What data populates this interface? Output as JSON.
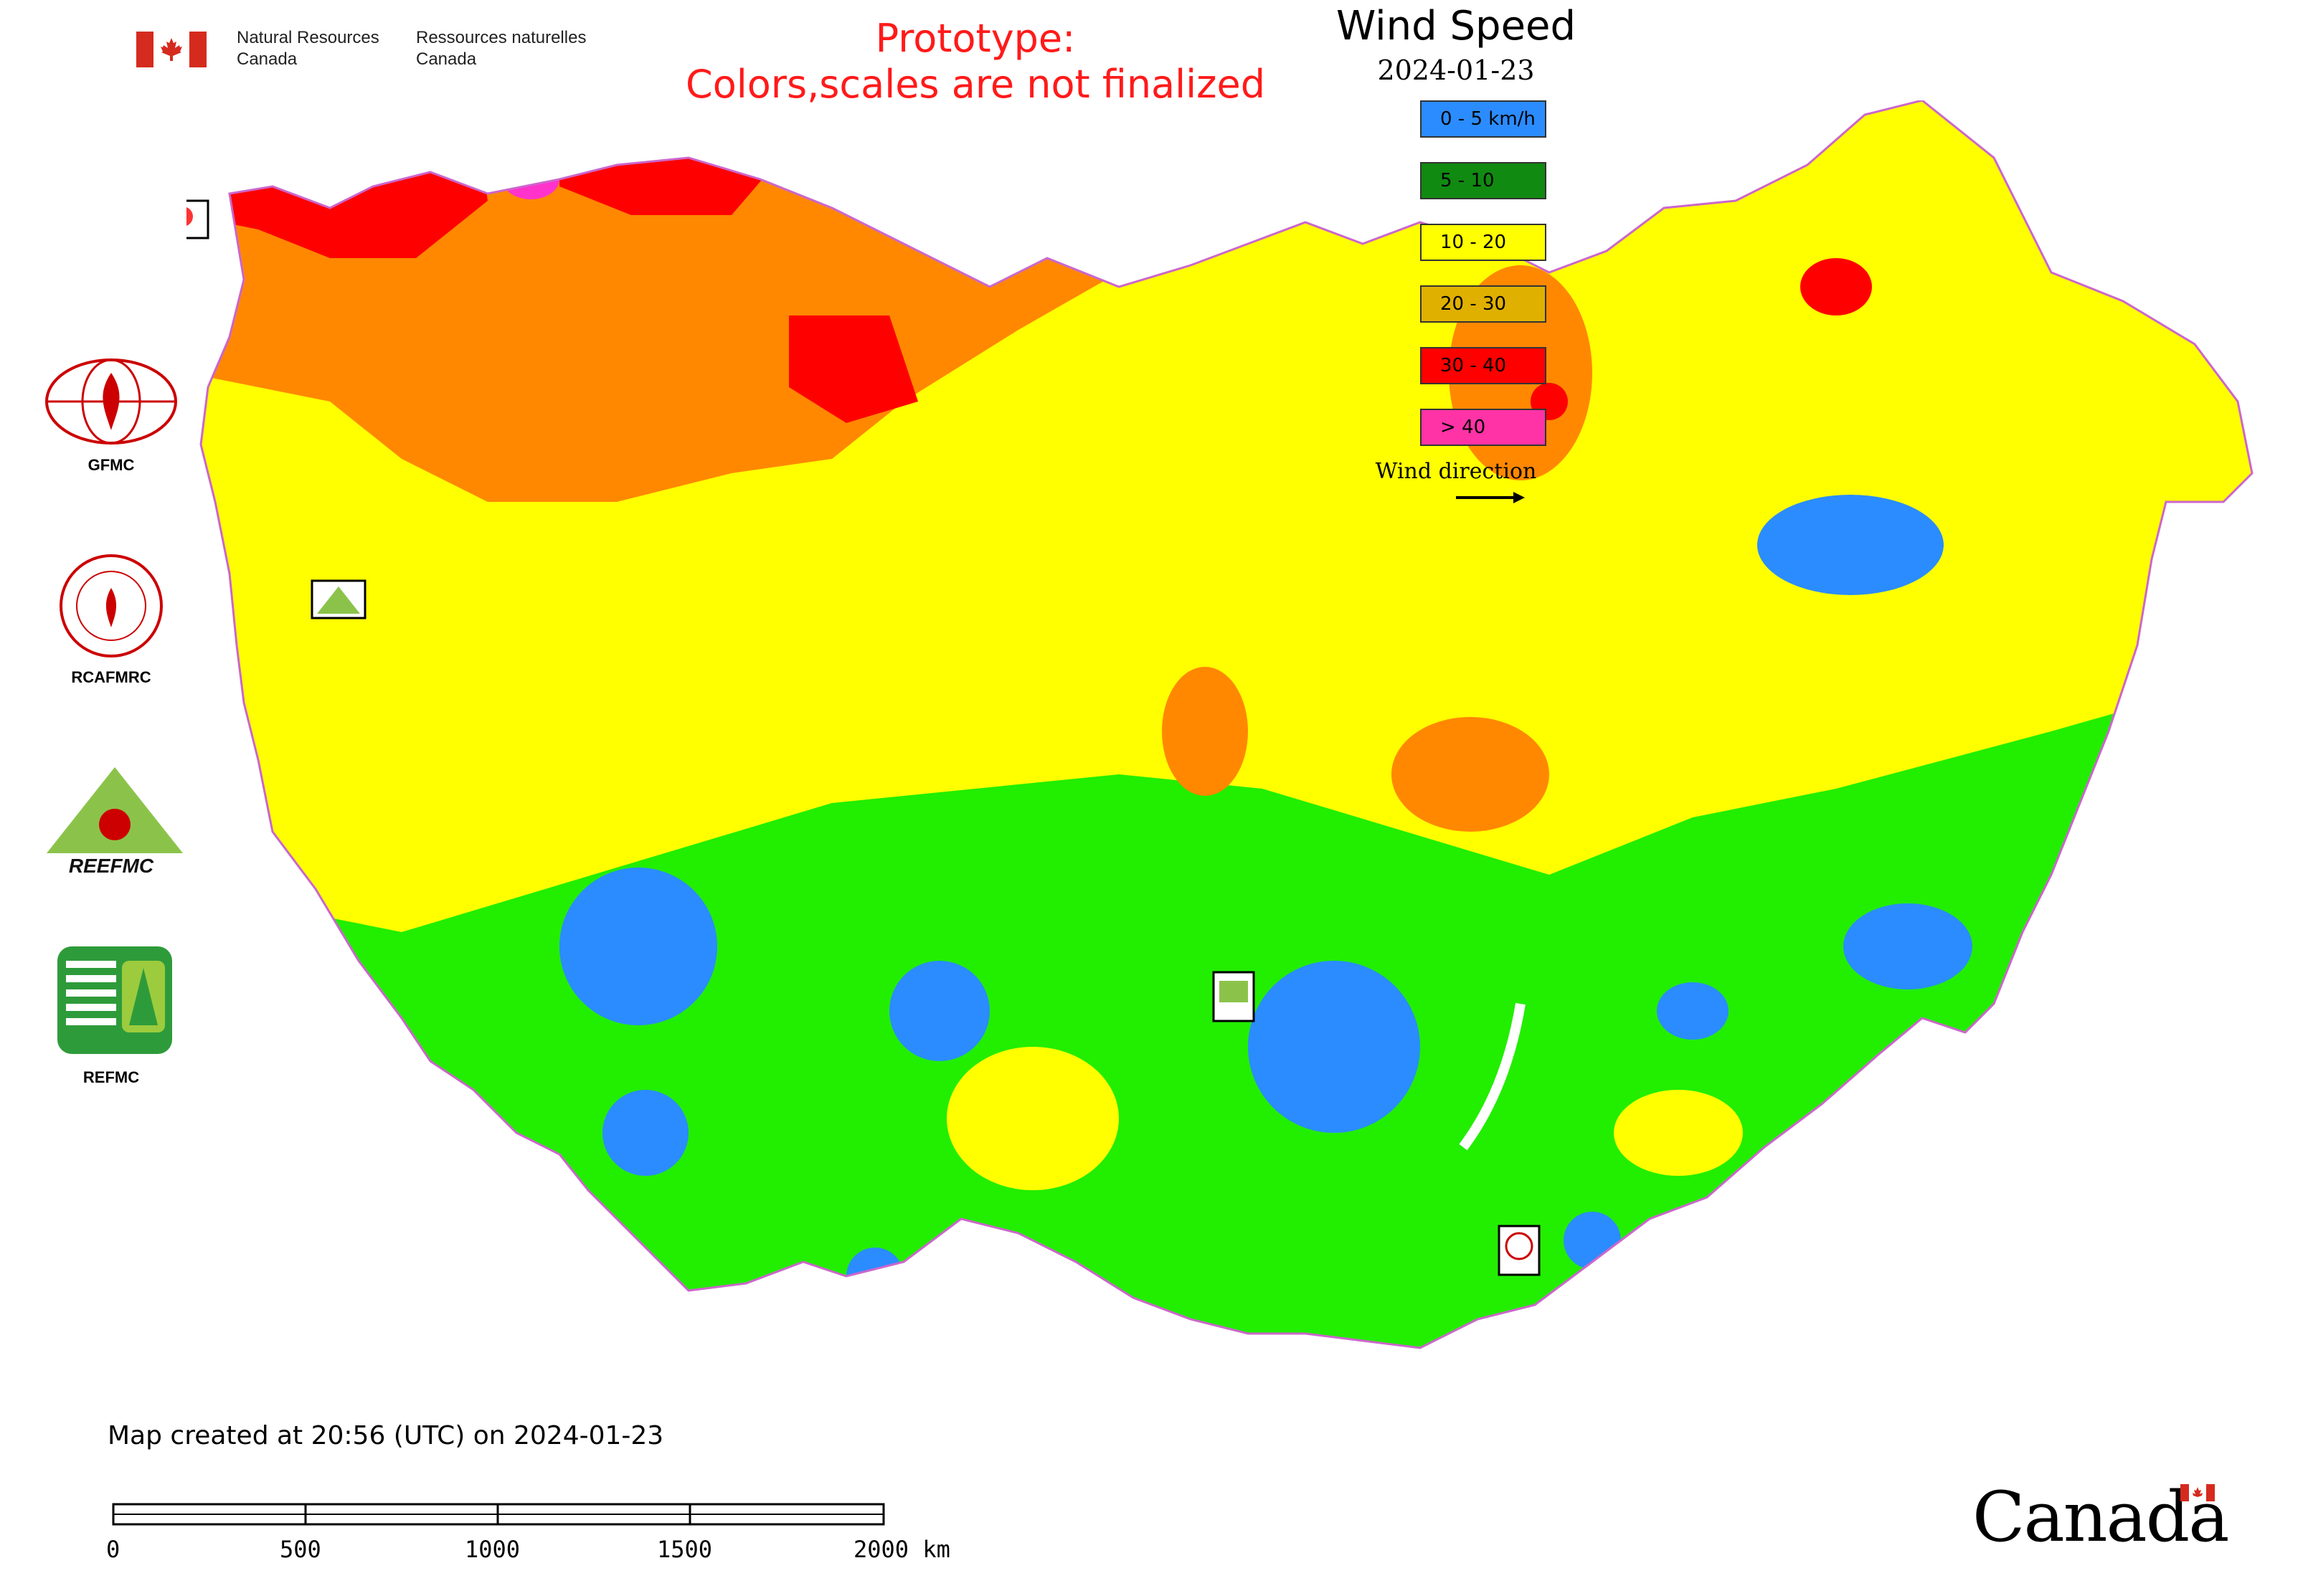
{
  "header": {
    "agency_en_line1": "Natural Resources",
    "agency_en_line2": "Canada",
    "agency_fr_line1": "Ressources naturelles",
    "agency_fr_line2": "Canada",
    "prototype_line1": "Prototype:",
    "prototype_line2": "Colors,scales are not finalized"
  },
  "legend": {
    "title": "Wind Speed",
    "date": "2024-01-23",
    "items": [
      {
        "label": "0 - 5 km/h",
        "color": "#2b8cff"
      },
      {
        "label": "5 - 10",
        "color": "#118a11"
      },
      {
        "label": "10 - 20",
        "color": "#ffff00"
      },
      {
        "label": "20 - 30",
        "color": "#e0b000"
      },
      {
        "label": "30 - 40",
        "color": "#ff0000"
      },
      {
        "label": "> 40",
        "color": "#ff33a6"
      }
    ],
    "wind_direction_label": "Wind direction"
  },
  "side_logos": [
    {
      "name": "GFMC",
      "icon": "gfmc-globe-flame-icon"
    },
    {
      "name": "RCAFMRC",
      "icon": "rcafmrc-seal-icon"
    },
    {
      "name": "REEFMC",
      "icon": "reefmc-triangle-icon"
    },
    {
      "name": "REFMC",
      "icon": "refmc-emblem-icon"
    }
  ],
  "map_markers": [
    {
      "name": "GFMC",
      "icon": "gfmc-marker-icon"
    },
    {
      "name": "REEFMC",
      "icon": "reefmc-marker-icon"
    },
    {
      "name": "REFMC",
      "icon": "refmc-marker-icon"
    },
    {
      "name": "RCAFMRC",
      "icon": "rcafmrc-marker-icon"
    }
  ],
  "map_colors": {
    "green": "#22ee00",
    "yellow": "#ffff00",
    "orange": "#ff8800",
    "red": "#ff0000",
    "blue": "#2b8cff",
    "magenta": "#ff33cc"
  },
  "footer": {
    "created_text": "Map created at 20:56 (UTC) on 2024-01-23",
    "scale_labels": [
      "0",
      "500",
      "1000",
      "1500",
      "2000 km"
    ],
    "wordmark": "Canada"
  }
}
